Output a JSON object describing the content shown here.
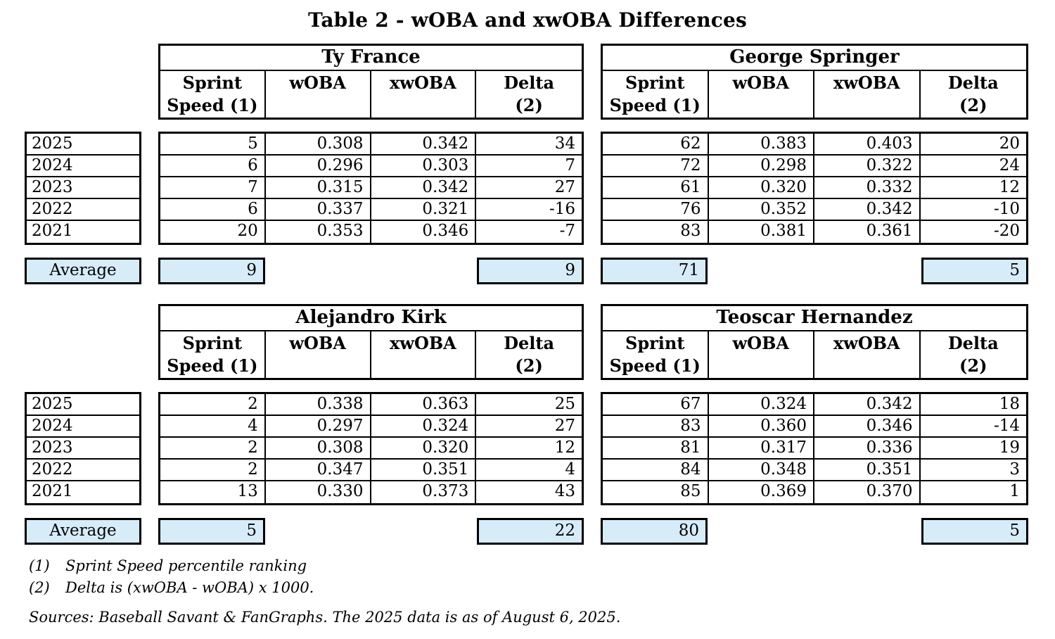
{
  "title": "Table 2 - wOBA and xwOBA Differences",
  "column_headers": [
    {
      "line1": "Sprint",
      "line2": "Speed (1)"
    },
    {
      "line1": "wOBA",
      "line2": ""
    },
    {
      "line1": "xwOBA",
      "line2": ""
    },
    {
      "line1": "Delta",
      "line2": "(2)"
    }
  ],
  "years": [
    "2025",
    "2024",
    "2023",
    "2022",
    "2021"
  ],
  "average_label": "Average",
  "tables": [
    {
      "player": "Ty France",
      "rows": [
        [
          "5",
          "0.308",
          "0.342",
          "34"
        ],
        [
          "6",
          "0.296",
          "0.303",
          "7"
        ],
        [
          "7",
          "0.315",
          "0.342",
          "27"
        ],
        [
          "6",
          "0.337",
          "0.321",
          "-16"
        ],
        [
          "20",
          "0.353",
          "0.346",
          "-7"
        ]
      ],
      "avg_sprint": "9",
      "avg_delta": "9"
    },
    {
      "player": "George Springer",
      "rows": [
        [
          "62",
          "0.383",
          "0.403",
          "20"
        ],
        [
          "72",
          "0.298",
          "0.322",
          "24"
        ],
        [
          "61",
          "0.320",
          "0.332",
          "12"
        ],
        [
          "76",
          "0.352",
          "0.342",
          "-10"
        ],
        [
          "83",
          "0.381",
          "0.361",
          "-20"
        ]
      ],
      "avg_sprint": "71",
      "avg_delta": "5"
    },
    {
      "player": "Alejandro Kirk",
      "rows": [
        [
          "2",
          "0.338",
          "0.363",
          "25"
        ],
        [
          "4",
          "0.297",
          "0.324",
          "27"
        ],
        [
          "2",
          "0.308",
          "0.320",
          "12"
        ],
        [
          "2",
          "0.347",
          "0.351",
          "4"
        ],
        [
          "13",
          "0.330",
          "0.373",
          "43"
        ]
      ],
      "avg_sprint": "5",
      "avg_delta": "22"
    },
    {
      "player": "Teoscar Hernandez",
      "rows": [
        [
          "67",
          "0.324",
          "0.342",
          "18"
        ],
        [
          "83",
          "0.360",
          "0.346",
          "-14"
        ],
        [
          "81",
          "0.317",
          "0.336",
          "19"
        ],
        [
          "84",
          "0.348",
          "0.351",
          "3"
        ],
        [
          "85",
          "0.369",
          "0.370",
          "1"
        ]
      ],
      "avg_sprint": "80",
      "avg_delta": "5"
    }
  ],
  "footnotes": [
    {
      "num": "(1)",
      "text": "Sprint Speed percentile ranking"
    },
    {
      "num": "(2)",
      "text": "Delta is (xwOBA - wOBA) x 1000."
    }
  ],
  "sources": "Sources: Baseball Savant & FanGraphs. The 2025 data is as of August 6, 2025.",
  "colors": {
    "highlight": "#d6ecf9",
    "border": "#000000"
  }
}
